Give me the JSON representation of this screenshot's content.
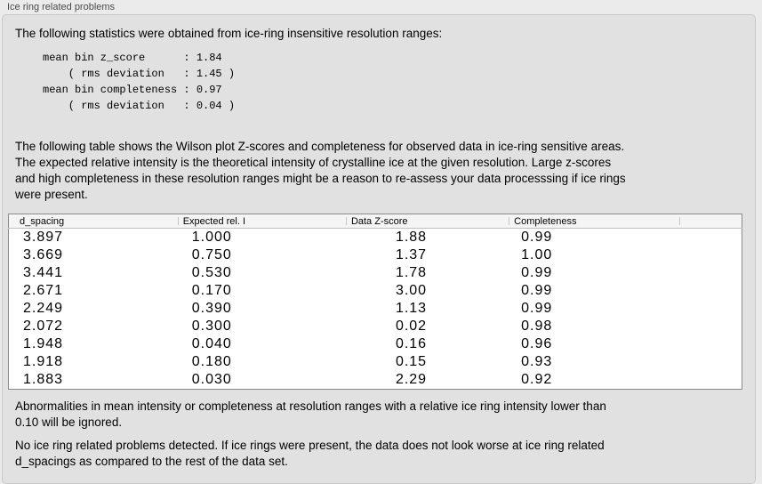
{
  "colors": {
    "outer-bg": "#ebebeb",
    "panel-bg": "#e1e1e1",
    "panel-border": "#c8c8c8",
    "title-color": "#4a4a4a",
    "text-color": "#000000",
    "table-border": "#8b8b8b",
    "table-bg": "#ffffff",
    "header-bg": "#f5f5f5",
    "header-line": "#c0c0c0",
    "header-divider": "#c6c6c6"
  },
  "panel": {
    "title": "Ice ring related problems"
  },
  "intro": "The following statistics were obtained from ice-ring insensitive resolution ranges:",
  "stats_text": "mean bin z_score      : 1.84\n    ( rms deviation   : 1.45 )\nmean bin completeness : 0.97\n    ( rms deviation   : 0.04 )",
  "stats": {
    "mean_bin_z_score": "1.84",
    "z_score_rms_deviation": "1.45",
    "mean_bin_completeness": "0.97",
    "completeness_rms_deviation": "0.04"
  },
  "description": "The following table shows the Wilson plot Z-scores and completeness for observed data in ice-ring sensitive areas.\nThe expected relative intensity is the theoretical intensity of crystalline ice at the given resolution. Large z-scores\nand high completeness in these resolution ranges might be a reason to re-assess your data processsing if ice rings\nwere present.",
  "table": {
    "columns": [
      "d_spacing",
      "Expected rel. I",
      "Data Z-score",
      "Completeness"
    ],
    "rows": [
      [
        "3.897",
        "1.000",
        "1.88",
        "0.99"
      ],
      [
        "3.669",
        "0.750",
        "1.37",
        "1.00"
      ],
      [
        "3.441",
        "0.530",
        "1.78",
        "0.99"
      ],
      [
        "2.671",
        "0.170",
        "3.00",
        "0.99"
      ],
      [
        "2.249",
        "0.390",
        "1.13",
        "0.99"
      ],
      [
        "2.072",
        "0.300",
        "0.02",
        "0.98"
      ],
      [
        "1.948",
        "0.040",
        "0.16",
        "0.96"
      ],
      [
        "1.918",
        "0.180",
        "0.15",
        "0.93"
      ],
      [
        "1.883",
        "0.030",
        "2.29",
        "0.92"
      ]
    ]
  },
  "note": "Abnormalities in mean intensity or completeness at resolution ranges with a relative ice ring intensity lower than\n0.10 will be ignored.",
  "conclusion": "No ice ring related problems detected. If ice rings were present, the data does not look worse at ice ring related\nd_spacings as compared to the rest of the data set."
}
